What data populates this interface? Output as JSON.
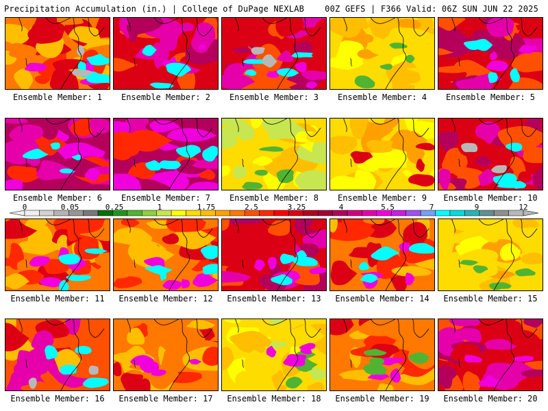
{
  "header": {
    "left": "Precipitation Accumulation (in.) | College of DuPage NEXLAB",
    "right": "00Z GEFS | F366 Valid: 06Z SUN JUN 22 2025"
  },
  "member_label_prefix": "Ensemble Member: ",
  "members": [
    {
      "label": "Ensemble Member: 1",
      "dominant": "orange-red",
      "highlights": [
        "magenta",
        "cyan",
        "gray"
      ]
    },
    {
      "label": "Ensemble Member: 2",
      "dominant": "red-magenta",
      "highlights": [
        "magenta",
        "cyan"
      ]
    },
    {
      "label": "Ensemble Member: 3",
      "dominant": "red-magenta",
      "highlights": [
        "magenta",
        "cyan",
        "gray"
      ]
    },
    {
      "label": "Ensemble Member: 4",
      "dominant": "yellow-orange",
      "highlights": [
        "green"
      ]
    },
    {
      "label": "Ensemble Member: 5",
      "dominant": "red-magenta",
      "highlights": [
        "magenta",
        "cyan"
      ]
    },
    {
      "label": "Ensemble Member: 6",
      "dominant": "magenta",
      "highlights": [
        "cyan"
      ]
    },
    {
      "label": "Ensemble Member: 7",
      "dominant": "magenta",
      "highlights": [
        "cyan"
      ]
    },
    {
      "label": "Ensemble Member: 8",
      "dominant": "yellow",
      "highlights": [
        "green"
      ]
    },
    {
      "label": "Ensemble Member: 9",
      "dominant": "yellow-orange",
      "highlights": [
        "red"
      ]
    },
    {
      "label": "Ensemble Member: 10",
      "dominant": "red-magenta",
      "highlights": [
        "cyan",
        "gray"
      ]
    },
    {
      "label": "Ensemble Member: 11",
      "dominant": "orange-red",
      "highlights": [
        "magenta",
        "cyan"
      ]
    },
    {
      "label": "Ensemble Member: 12",
      "dominant": "orange-red",
      "highlights": [
        "magenta",
        "cyan"
      ]
    },
    {
      "label": "Ensemble Member: 13",
      "dominant": "red-magenta",
      "highlights": [
        "magenta",
        "cyan"
      ]
    },
    {
      "label": "Ensemble Member: 14",
      "dominant": "orange-red",
      "highlights": [
        "magenta",
        "cyan"
      ]
    },
    {
      "label": "Ensemble Member: 15",
      "dominant": "yellow-orange",
      "highlights": [
        "green"
      ]
    },
    {
      "label": "Ensemble Member: 16",
      "dominant": "orange-magenta",
      "highlights": [
        "cyan",
        "gray"
      ]
    },
    {
      "label": "Ensemble Member: 17",
      "dominant": "orange-red",
      "highlights": [
        "magenta"
      ]
    },
    {
      "label": "Ensemble Member: 18",
      "dominant": "yellow",
      "highlights": [
        "green",
        "magenta"
      ]
    },
    {
      "label": "Ensemble Member: 19",
      "dominant": "orange-red",
      "highlights": [
        "magenta",
        "green"
      ]
    },
    {
      "label": "Ensemble Member: 20",
      "dominant": "red-magenta",
      "highlights": [
        "magenta"
      ]
    }
  ],
  "legend": {
    "tick_labels": [
      "0",
      "0.05",
      "0.25",
      "1",
      "1.75",
      "2.5",
      "3.25",
      "4",
      "5.5",
      "7",
      "9",
      "12"
    ],
    "colors": [
      "#f0f0f0",
      "#d2d2d2",
      "#b4b4b4",
      "#969696",
      "#787878",
      "#0a6e0a",
      "#1e961e",
      "#50b432",
      "#8cd23c",
      "#c8e650",
      "#ffff00",
      "#ffdc00",
      "#ffbe00",
      "#ffa000",
      "#ff7800",
      "#ff5000",
      "#ff2800",
      "#ff0000",
      "#dc0014",
      "#b4001e",
      "#a0003c",
      "#b4005a",
      "#d2007d",
      "#e600aa",
      "#f000dc",
      "#c81ee6",
      "#a050f0",
      "#78a0f0",
      "#00ffff",
      "#00dcdc",
      "#28b4b4",
      "#609090",
      "#909090",
      "#b8b8b8"
    ]
  }
}
